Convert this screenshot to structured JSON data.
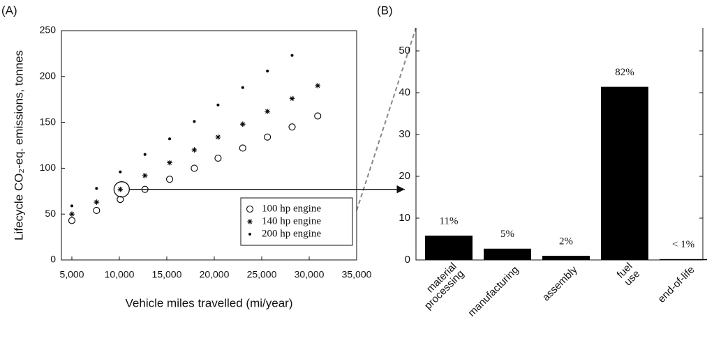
{
  "chart_data": [
    {
      "type": "scatter",
      "panel": "(A)",
      "xlabel": "Vehicle miles travelled (mi/year)",
      "ylabel": "Lifecycle CO₂-eq. emissions, tonnes",
      "x": [
        5000,
        7600,
        10100,
        12700,
        15300,
        17900,
        20400,
        23000,
        25600,
        28200,
        30900
      ],
      "series": [
        {
          "name": "100 hp engine",
          "marker": "circle",
          "color": "#000000",
          "values": [
            43,
            54,
            66,
            77,
            88,
            100,
            111,
            122,
            134,
            145,
            157
          ]
        },
        {
          "name": "140 hp engine",
          "marker": "star",
          "color": "#000000",
          "values": [
            50,
            63,
            77,
            92,
            106,
            120,
            134,
            148,
            162,
            176,
            190
          ]
        },
        {
          "name": "200 hp engine",
          "marker": "dot",
          "color": "#000000",
          "values": [
            59,
            78,
            96,
            115,
            132,
            151,
            169,
            188,
            206,
            223,
            null
          ]
        }
      ],
      "xlim": [
        3900,
        35000
      ],
      "xticks": [
        {
          "value": 5000,
          "label": "5,000"
        },
        {
          "value": 10000,
          "label": "10,000"
        },
        {
          "value": 15000,
          "label": "15,000"
        },
        {
          "value": 20000,
          "label": "20,000"
        },
        {
          "value": 25000,
          "label": "25,000"
        },
        {
          "value": 30000,
          "label": "30,000"
        },
        {
          "value": 35000,
          "label": "35,000"
        }
      ],
      "ylim": [
        0,
        250
      ],
      "yticks": [
        0,
        50,
        100,
        150,
        200,
        250
      ],
      "legend": "lower right"
    },
    {
      "type": "bar",
      "panel": "(B)",
      "categories": [
        "material processing",
        "manufacturing",
        "assembly",
        "fuel use",
        "end-of-life"
      ],
      "values": [
        5.8,
        2.7,
        1.0,
        41.4,
        0.2
      ],
      "annotations": [
        "11%",
        "5%",
        "2%",
        "82%",
        "< 1%"
      ],
      "color": "#000000",
      "ylim": [
        0,
        55.5
      ],
      "yticks": [
        0,
        10,
        20,
        30,
        40,
        50
      ]
    }
  ]
}
